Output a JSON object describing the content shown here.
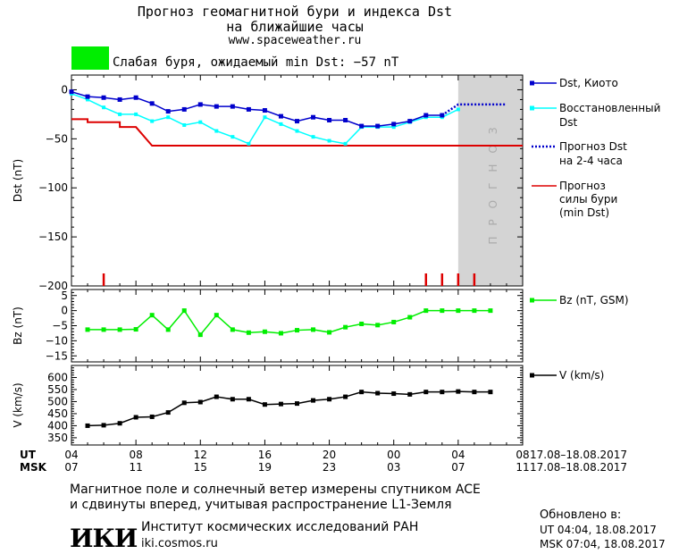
{
  "header": {
    "title_line1": "Прогноз геомагнитной бури и индекса Dst",
    "title_line2": "на ближайшие часы",
    "site": "www.spaceweather.ru",
    "status_text": "Слабая буря, ожидаемый min Dst: −57 nT",
    "status_color": "#00ee00"
  },
  "forecast_band_label": "ПРОГНОЗ",
  "legend": {
    "dst_kyoto": "Dst, Киото",
    "restored_1": "Восстановленный",
    "restored_2": "Dst",
    "forecast_1": "Прогноз Dst",
    "forecast_2": "на 2-4 часа",
    "storm_1": "Прогноз",
    "storm_2": "силы бури",
    "storm_3": "(min Dst)",
    "bz": "Bz (nT, GSM)",
    "v": "V (km/s)"
  },
  "axis_rows": {
    "ut_label": "UT",
    "msk_label": "MSK",
    "ut_ticks": [
      "04",
      "08",
      "12",
      "16",
      "20",
      "00",
      "04",
      "08"
    ],
    "msk_ticks": [
      "07",
      "11",
      "15",
      "19",
      "23",
      "03",
      "07",
      "11"
    ],
    "ut_dates": "17.08–18.08.2017",
    "msk_dates": "17.08–18.08.2017"
  },
  "footer": {
    "note_line1": "Магнитное поле и солнечный ветер измерены спутником ACE",
    "note_line2": "и сдвинуты вперед, учитывая распространение L1-Земля",
    "logo": "ИКИ",
    "institute": "Институт космических исследований РАН",
    "institute_site": "iki.cosmos.ru",
    "updated_label": "Обновлено в:",
    "updated_ut": "UT  04:04, 18.08.2017",
    "updated_msk": "MSK 07:04, 18.08.2017"
  },
  "colors": {
    "dst": "#0000cc",
    "restored": "#00ffff",
    "forecast": "#0000cc",
    "storm": "#dd0000",
    "bz": "#00ee00",
    "v": "#000000",
    "band": "#d4d4d4"
  },
  "chart_data": [
    {
      "type": "line",
      "name": "dst-panel",
      "x_unit": "hours since 04 UT 17.08",
      "ylabel": "Dst (nT)",
      "ylim": [
        -200,
        15
      ],
      "yticks": [
        0,
        -50,
        -100,
        -150,
        -200
      ],
      "xlim": [
        0,
        28
      ],
      "forecast_region": [
        24,
        28
      ],
      "series": [
        {
          "name": "Dst, Киото",
          "x": [
            0,
            1,
            2,
            3,
            4,
            5,
            6,
            7,
            8,
            9,
            10,
            11,
            12,
            13,
            14,
            15,
            16,
            17,
            18,
            19,
            20,
            21,
            22,
            23
          ],
          "y": [
            -2,
            -7,
            -8,
            -10,
            -8,
            -14,
            -22,
            -20,
            -15,
            -17,
            -17,
            -20,
            -21,
            -27,
            -32,
            -28,
            -31,
            -31,
            -37,
            -37,
            -35,
            -32,
            -26,
            -26
          ]
        },
        {
          "name": "Восстановленный Dst",
          "x": [
            0,
            1,
            2,
            3,
            4,
            5,
            6,
            7,
            8,
            9,
            10,
            11,
            12,
            13,
            14,
            15,
            16,
            17,
            18,
            19,
            20,
            21,
            22,
            23,
            24
          ],
          "y": [
            -4,
            -10,
            -18,
            -25,
            -25,
            -32,
            -28,
            -36,
            -33,
            -42,
            -48,
            -55,
            -28,
            -35,
            -42,
            -48,
            -52,
            -55,
            -38,
            -38,
            -38,
            -33,
            -28,
            -28,
            -20
          ]
        },
        {
          "name": "Прогноз Dst на 2-4 часа",
          "x": [
            23,
            24,
            25,
            26,
            27
          ],
          "y": [
            -26,
            -15,
            -15,
            -15,
            -15
          ]
        },
        {
          "name": "Прогноз силы бури (min Dst)",
          "x": [
            0,
            1,
            1,
            3,
            3,
            4,
            5,
            28
          ],
          "y": [
            -30,
            -30,
            -33,
            -33,
            -38,
            -38,
            -57,
            -57
          ]
        }
      ],
      "red_markers_x": [
        2,
        22,
        23,
        24,
        25
      ]
    },
    {
      "type": "line",
      "name": "bz-panel",
      "ylabel": "Bz (nT)",
      "ylim": [
        -17,
        7
      ],
      "yticks": [
        5,
        0,
        -5,
        -10,
        -15
      ],
      "series": [
        {
          "name": "Bz (nT, GSM)",
          "x": [
            1,
            2,
            3,
            4,
            5,
            6,
            7,
            8,
            9,
            10,
            11,
            12,
            13,
            14,
            15,
            16,
            17,
            18,
            19,
            20,
            21,
            22,
            23,
            24,
            25,
            26
          ],
          "y": [
            -6.3,
            -6.3,
            -6.3,
            -6.2,
            -1.5,
            -6.3,
            0,
            -8,
            -1.5,
            -6.3,
            -7.3,
            -7,
            -7.5,
            -6.5,
            -6.3,
            -7.2,
            -5.5,
            -4.4,
            -4.8,
            -3.8,
            -2.2,
            0,
            0,
            0,
            0,
            0
          ]
        }
      ]
    },
    {
      "type": "line",
      "name": "v-panel",
      "ylabel": "V (km/s)",
      "ylim": [
        320,
        650
      ],
      "yticks": [
        600,
        550,
        500,
        450,
        400,
        350
      ],
      "series": [
        {
          "name": "V (km/s)",
          "x": [
            1,
            2,
            3,
            4,
            5,
            6,
            7,
            8,
            9,
            10,
            11,
            12,
            13,
            14,
            15,
            16,
            17,
            18,
            19,
            20,
            21,
            22,
            23,
            24,
            25,
            26
          ],
          "y": [
            400,
            402,
            410,
            435,
            437,
            455,
            495,
            498,
            520,
            510,
            510,
            488,
            490,
            492,
            505,
            510,
            520,
            540,
            535,
            533,
            530,
            540,
            540,
            542,
            540,
            540
          ]
        }
      ]
    }
  ]
}
